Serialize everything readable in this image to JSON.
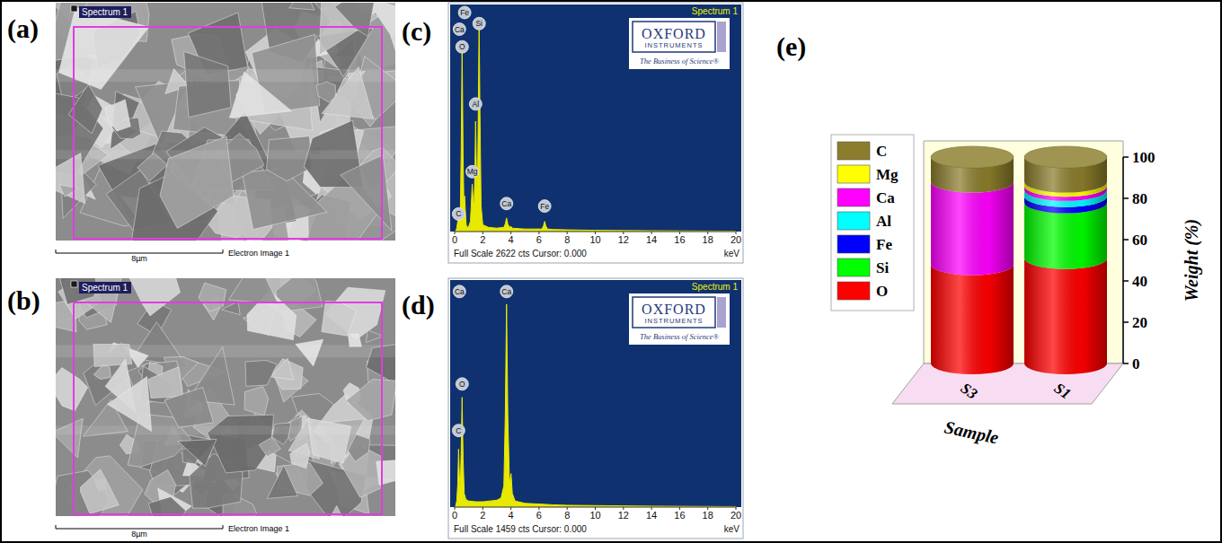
{
  "panels": [
    "(a)",
    "(b)",
    "(c)",
    "(d)",
    "(e)"
  ],
  "images": [
    {
      "tag": "Spectrum 1",
      "scale_bar": "8µm",
      "caption": "Electron Image 1"
    },
    {
      "tag": "Spectrum 1",
      "scale_bar": "8µm",
      "caption": "Electron Image 1"
    }
  ],
  "chart_data": [
    {
      "type": "area",
      "title": "Spectrum 1",
      "subtitle": "Full Scale 2622 cts Cursor: 0.000",
      "x_label": "keV",
      "x": [
        0.05,
        0.15,
        0.22,
        0.28,
        0.34,
        0.4,
        0.46,
        0.53,
        0.6,
        0.66,
        0.71,
        0.76,
        0.82,
        0.9,
        1.0,
        1.12,
        1.2,
        1.25,
        1.31,
        1.38,
        1.44,
        1.49,
        1.55,
        1.62,
        1.68,
        1.74,
        1.8,
        1.88,
        2.0,
        2.4,
        3.0,
        3.5,
        3.6,
        3.69,
        3.78,
        3.9,
        4.01,
        4.1,
        5.0,
        6.2,
        6.32,
        6.4,
        6.48,
        6.6,
        7.0,
        8,
        10,
        12,
        14,
        16,
        18,
        20
      ],
      "values": [
        0,
        40,
        120,
        250,
        160,
        200,
        900,
        2200,
        900,
        300,
        420,
        250,
        80,
        50,
        60,
        120,
        380,
        560,
        380,
        300,
        700,
        1300,
        700,
        400,
        1400,
        2480,
        1400,
        300,
        80,
        50,
        40,
        50,
        90,
        160,
        90,
        50,
        60,
        40,
        30,
        30,
        70,
        120,
        70,
        30,
        25,
        20,
        15,
        12,
        10,
        8,
        6,
        5
      ],
      "color": "#e8e800",
      "xlim": [
        0,
        20
      ],
      "xticks": [
        0,
        2,
        4,
        6,
        8,
        10,
        12,
        14,
        16,
        18,
        20
      ],
      "ylim": [
        0,
        2622
      ],
      "tick_labels": "x",
      "annotations": [
        {
          "text": "C",
          "x": 0.28,
          "y": 207
        },
        {
          "text": "Ca",
          "x": 0.34,
          "y": 2384
        },
        {
          "text": "Fe",
          "x": 0.71,
          "y": 2580
        },
        {
          "text": "O",
          "x": 0.53,
          "y": 2176
        },
        {
          "text": "Mg",
          "x": 1.25,
          "y": 705
        },
        {
          "text": "Al",
          "x": 1.49,
          "y": 1503
        },
        {
          "text": "Si",
          "x": 1.74,
          "y": 2450
        },
        {
          "text": "Ca",
          "x": 3.69,
          "y": 330
        },
        {
          "text": "Fe",
          "x": 6.4,
          "y": 300
        }
      ],
      "logo": [
        "OXFORD",
        "INSTRUMENTS",
        "The Business of Science®"
      ]
    },
    {
      "type": "area",
      "title": "Spectrum 1",
      "subtitle": "Full Scale 1459 cts Cursor: 0.000",
      "x_label": "keV",
      "x": [
        0.05,
        0.15,
        0.22,
        0.28,
        0.34,
        0.4,
        0.46,
        0.53,
        0.6,
        0.68,
        0.8,
        1.0,
        1.5,
        2.0,
        2.5,
        3.0,
        3.3,
        3.5,
        3.6,
        3.69,
        3.78,
        3.9,
        4.01,
        4.1,
        4.3,
        5,
        6,
        7,
        8,
        10,
        12,
        14,
        16,
        18,
        20
      ],
      "values": [
        0,
        40,
        150,
        380,
        200,
        120,
        350,
        720,
        320,
        90,
        50,
        40,
        35,
        35,
        40,
        45,
        60,
        140,
        600,
        1330,
        600,
        150,
        220,
        90,
        40,
        25,
        20,
        15,
        12,
        10,
        8,
        6,
        5,
        4,
        3
      ],
      "color": "#e8e800",
      "xlim": [
        0,
        20
      ],
      "xticks": [
        0,
        2,
        4,
        6,
        8,
        10,
        12,
        14,
        16,
        18,
        20
      ],
      "ylim": [
        0,
        1459
      ],
      "tick_labels": "x",
      "annotations": [
        {
          "text": "Ca",
          "x": 0.34,
          "y": 1413
        },
        {
          "text": "O",
          "x": 0.53,
          "y": 807
        },
        {
          "text": "C",
          "x": 0.28,
          "y": 502
        },
        {
          "text": "Ca",
          "x": 3.69,
          "y": 1413
        }
      ],
      "logo": [
        "OXFORD",
        "INSTRUMENTS",
        "The Business of Science®"
      ]
    },
    {
      "type": "bar",
      "stacked": true,
      "x_label": "Sample",
      "y_label": "Weight (%)",
      "categories": [
        "S3",
        "S1"
      ],
      "series": [
        {
          "name": "O",
          "color": "#ff0000",
          "values": [
            48,
            51
          ]
        },
        {
          "name": "Si",
          "color": "#00ff00",
          "values": [
            0,
            27
          ]
        },
        {
          "name": "Fe",
          "color": "#0000ff",
          "values": [
            0,
            3
          ]
        },
        {
          "name": "Al",
          "color": "#00ffff",
          "values": [
            0,
            3
          ]
        },
        {
          "name": "Ca",
          "color": "#ff00ff",
          "values": [
            40,
            2
          ]
        },
        {
          "name": "Mg",
          "color": "#ffff00",
          "values": [
            0,
            2
          ]
        },
        {
          "name": "C",
          "color": "#8b7d2b",
          "values": [
            12,
            12
          ]
        }
      ],
      "ylim": [
        0,
        100
      ],
      "yticks": [
        0,
        20,
        40,
        60,
        80,
        100
      ],
      "legend": "left"
    }
  ]
}
